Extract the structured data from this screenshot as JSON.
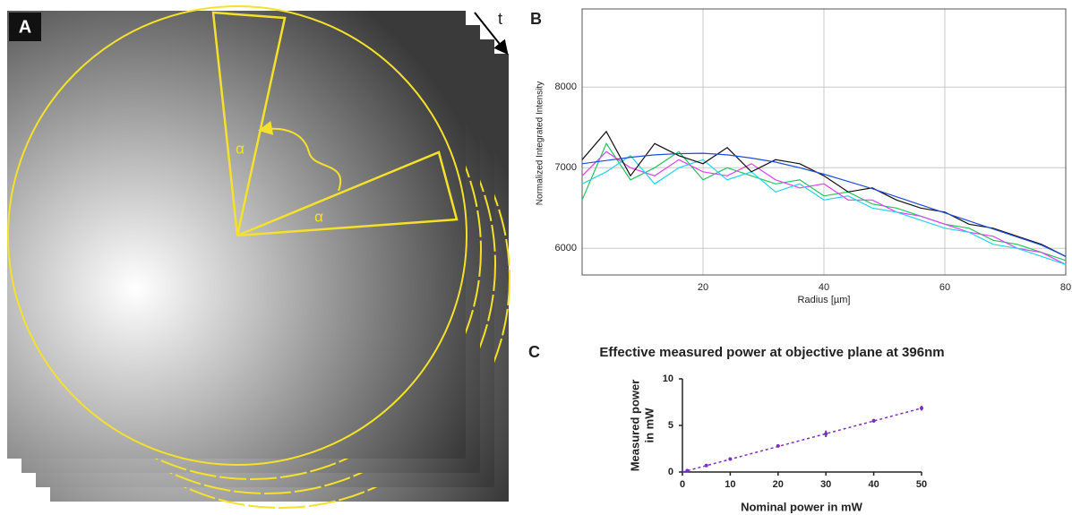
{
  "panel_a": {
    "label": "A",
    "time_label": "t",
    "angle_labels": [
      "α",
      "α"
    ]
  },
  "chart_data": [
    {
      "type": "line",
      "panel_label": "B",
      "x_label": "Radius [µm]",
      "y_label": "Normalized Integrated Intensity",
      "x": [
        0,
        4,
        8,
        12,
        16,
        20,
        24,
        28,
        32,
        36,
        40,
        44,
        48,
        52,
        56,
        60,
        64,
        68,
        72,
        76,
        80
      ],
      "series": [
        {
          "color": "#22c55e",
          "values": [
            6600,
            7300,
            6850,
            7000,
            7200,
            6850,
            7000,
            6900,
            6800,
            6850,
            6650,
            6700,
            6550,
            6500,
            6400,
            6300,
            6250,
            6100,
            6050,
            5950,
            5850
          ]
        },
        {
          "color": "#e040fb",
          "values": [
            6900,
            7200,
            7000,
            6900,
            7100,
            6950,
            6900,
            7050,
            6850,
            6750,
            6800,
            6600,
            6600,
            6450,
            6400,
            6300,
            6200,
            6150,
            6000,
            5950,
            5800
          ]
        },
        {
          "color": "#22d3ee",
          "values": [
            6800,
            6950,
            7150,
            6800,
            7000,
            7100,
            6850,
            6950,
            6700,
            6800,
            6600,
            6650,
            6500,
            6450,
            6350,
            6250,
            6200,
            6050,
            6000,
            5900,
            5800
          ]
        },
        {
          "color": "#111111",
          "values": [
            7100,
            7450,
            6900,
            7300,
            7150,
            7050,
            7250,
            6950,
            7100,
            7050,
            6900,
            6700,
            6750,
            6600,
            6500,
            6450,
            6300,
            6250,
            6150,
            6050,
            5900
          ]
        },
        {
          "color": "#1d4ed8",
          "values": [
            7050,
            7090,
            7130,
            7160,
            7175,
            7180,
            7160,
            7120,
            7070,
            7000,
            6920,
            6830,
            6740,
            6640,
            6540,
            6440,
            6340,
            6240,
            6140,
            6040,
            5900
          ]
        }
      ],
      "xlim": [
        0,
        80
      ],
      "xticks": [
        20,
        40,
        60,
        80
      ],
      "ylim": [
        5670,
        8970
      ],
      "yticks": [
        6000,
        7000,
        8000
      ],
      "grid": true
    },
    {
      "type": "scatter",
      "panel_label": "C",
      "title": "Effective measured power at objective plane  at 396nm",
      "x_label": "Nominal power in mW",
      "y_label": [
        "Measured power",
        "in mW"
      ],
      "x": [
        1,
        5,
        10,
        20,
        30,
        40,
        50
      ],
      "values": [
        0.15,
        0.7,
        1.4,
        2.8,
        4.1,
        5.5,
        6.85
      ],
      "errors": [
        0.05,
        0.05,
        0.05,
        0.1,
        0.35,
        0.2,
        0.25
      ],
      "color": "#7b2fbe",
      "fit": {
        "x": [
          0,
          50
        ],
        "values": [
          0,
          6.85
        ]
      },
      "xlim": [
        0,
        50
      ],
      "xticks": [
        0,
        10,
        20,
        30,
        40,
        50
      ],
      "ylim": [
        0,
        10
      ],
      "yticks": [
        0,
        5,
        10
      ],
      "grid": false
    }
  ]
}
